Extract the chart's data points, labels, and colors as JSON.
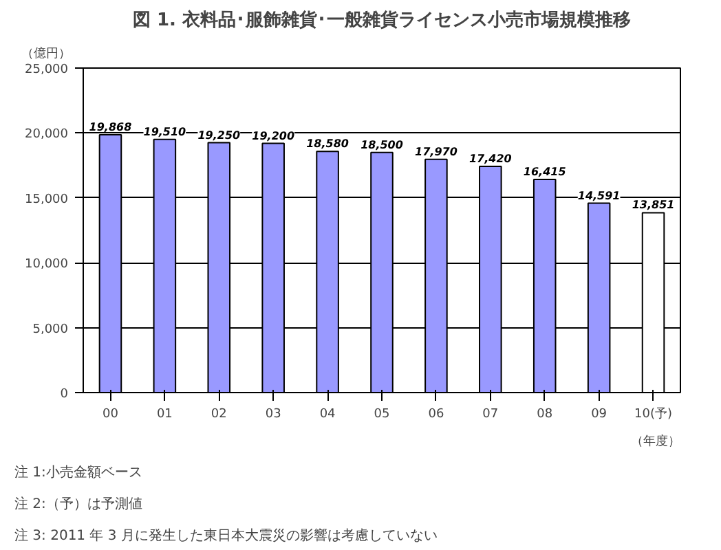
{
  "chart_data": {
    "type": "bar",
    "title": "図 1. 衣料品･服飾雑貨･一般雑貨ライセンス小売市場規模推移",
    "ylabel": "（億円）",
    "xlabel": "（年度）",
    "categories": [
      "00",
      "01",
      "02",
      "03",
      "04",
      "05",
      "06",
      "07",
      "08",
      "09",
      "10(予)"
    ],
    "values": [
      19868,
      19510,
      19250,
      19200,
      18580,
      18500,
      17970,
      17420,
      16415,
      14591,
      13851
    ],
    "colors": [
      "#9999ff",
      "#9999ff",
      "#9999ff",
      "#9999ff",
      "#9999ff",
      "#9999ff",
      "#9999ff",
      "#9999ff",
      "#9999ff",
      "#9999ff",
      "#ffffff"
    ],
    "ylim": [
      0,
      25000
    ],
    "yticks": [
      {
        "value": 0,
        "label": "0"
      },
      {
        "value": 5000,
        "label": "5,000"
      },
      {
        "value": 10000,
        "label": "10,000"
      },
      {
        "value": 15000,
        "label": "15,000"
      },
      {
        "value": 20000,
        "label": "20,000"
      },
      {
        "value": 25000,
        "label": "25,000"
      }
    ],
    "grid": "y",
    "data_labels": true,
    "value_labels": [
      "19,868",
      "19,510",
      "19,250",
      "19,200",
      "18,580",
      "18,500",
      "17,970",
      "17,420",
      "16,415",
      "14,591",
      "13,851"
    ],
    "annotations": [
      "注 1:小売金額ベース",
      "注 2:（予）は予測値",
      "注 3: 2011 年 3 月に発生した東日本大震災の影響は考慮していない"
    ]
  }
}
